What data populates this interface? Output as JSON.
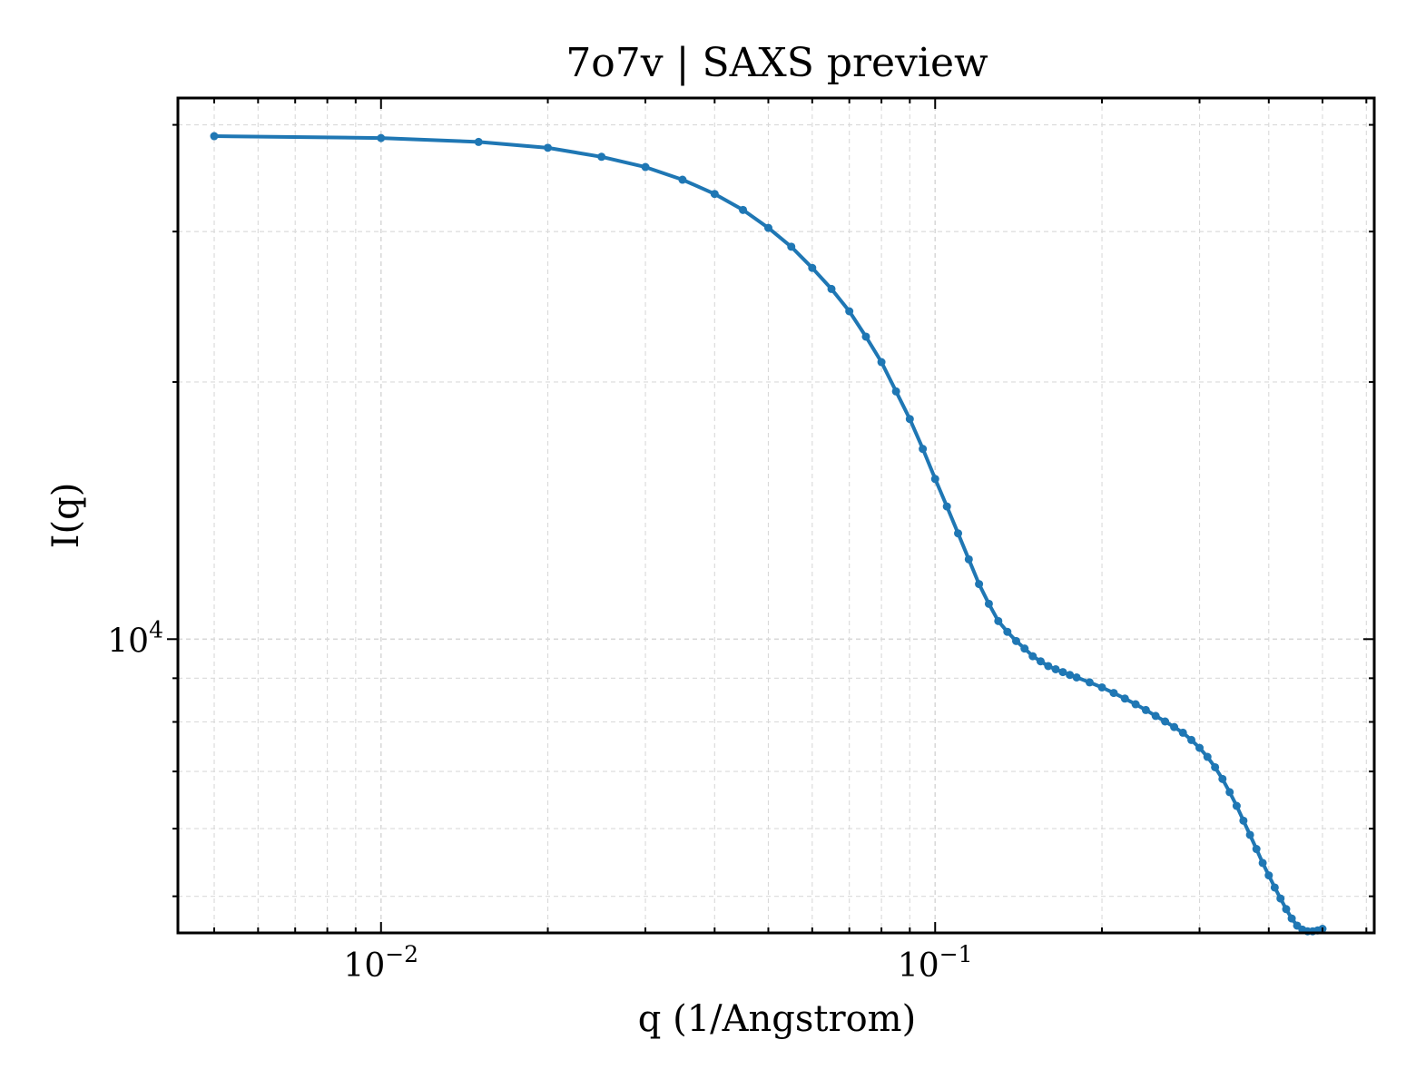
{
  "chart_data": {
    "type": "line",
    "title": "7o7v | SAXS preview",
    "xlabel": "q (1/Angstrom)",
    "ylabel": "I(q)",
    "xscale": "log",
    "yscale": "log",
    "xlim": [
      0.0043,
      0.62
    ],
    "ylim": [
      4530,
      43000
    ],
    "grid": true,
    "legend": "none",
    "x_ticks": [
      {
        "value": 0.01,
        "base": "10",
        "exp": "−2"
      },
      {
        "value": 0.1,
        "base": "10",
        "exp": "−1"
      }
    ],
    "y_ticks": [
      {
        "value": 10000,
        "base": "10",
        "exp": "4"
      }
    ],
    "color": "#1f77b4",
    "series": [
      {
        "name": "",
        "x": [
          0.005,
          0.01,
          0.015,
          0.02,
          0.025,
          0.03,
          0.035,
          0.04,
          0.045,
          0.05,
          0.055,
          0.06,
          0.065,
          0.07,
          0.075,
          0.08,
          0.085,
          0.09,
          0.095,
          0.1,
          0.105,
          0.11,
          0.115,
          0.12,
          0.125,
          0.13,
          0.135,
          0.14,
          0.145,
          0.15,
          0.155,
          0.16,
          0.165,
          0.17,
          0.175,
          0.18,
          0.19,
          0.2,
          0.21,
          0.22,
          0.23,
          0.24,
          0.25,
          0.26,
          0.27,
          0.28,
          0.29,
          0.3,
          0.31,
          0.32,
          0.33,
          0.34,
          0.35,
          0.36,
          0.37,
          0.38,
          0.39,
          0.4,
          0.41,
          0.42,
          0.43,
          0.44,
          0.45,
          0.46,
          0.47,
          0.48,
          0.49,
          0.5
        ],
        "y": [
          38800,
          38600,
          38200,
          37600,
          36700,
          35700,
          34500,
          33200,
          31800,
          30300,
          28800,
          27200,
          25700,
          24200,
          22600,
          21100,
          19500,
          18100,
          16700,
          15400,
          14300,
          13300,
          12400,
          11600,
          11000,
          10500,
          10200,
          9950,
          9750,
          9550,
          9420,
          9300,
          9220,
          9150,
          9080,
          9020,
          8900,
          8780,
          8650,
          8520,
          8390,
          8260,
          8130,
          8010,
          7890,
          7770,
          7620,
          7460,
          7280,
          7080,
          6860,
          6620,
          6380,
          6130,
          5900,
          5680,
          5470,
          5290,
          5120,
          4970,
          4830,
          4710,
          4620,
          4570,
          4550,
          4550,
          4560,
          4580
        ]
      }
    ]
  }
}
